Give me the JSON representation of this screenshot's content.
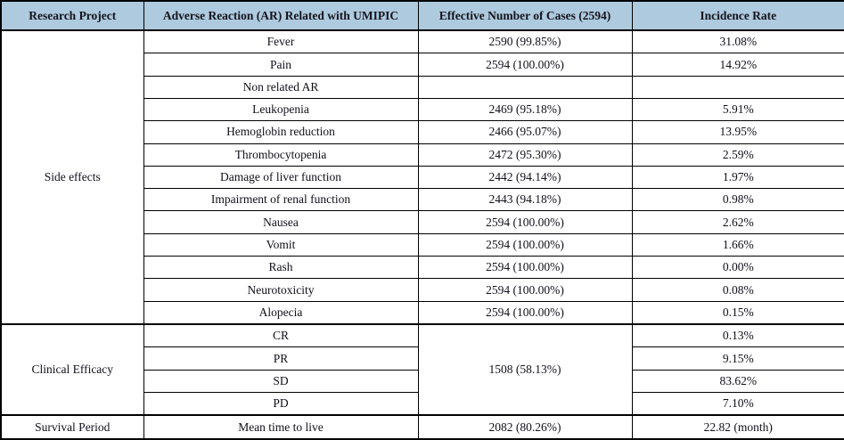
{
  "colors": {
    "header_bg": "#aecade",
    "border": "#000000",
    "text": "#10101a",
    "table_bg": "#ffffff"
  },
  "table": {
    "headers": [
      "Research Project",
      "Adverse Reaction (AR) Related with UMIPIC",
      "Effective Number of Cases (2594)",
      "Incidence Rate"
    ],
    "side_effects": {
      "label": "Side effects",
      "rows": [
        {
          "ar": "Fever",
          "cases": "2590 (99.85%)",
          "rate": "31.08%"
        },
        {
          "ar": "Pain",
          "cases": "2594 (100.00%)",
          "rate": "14.92%"
        },
        {
          "ar": "Non related AR",
          "cases": "",
          "rate": ""
        },
        {
          "ar": "Leukopenia",
          "cases": "2469 (95.18%)",
          "rate": "5.91%"
        },
        {
          "ar": "Hemoglobin reduction",
          "cases": "2466 (95.07%)",
          "rate": "13.95%"
        },
        {
          "ar": "Thrombocytopenia",
          "cases": "2472 (95.30%)",
          "rate": "2.59%"
        },
        {
          "ar": "Damage of liver function",
          "cases": "2442 (94.14%)",
          "rate": "1.97%"
        },
        {
          "ar": "Impairment of renal function",
          "cases": "2443 (94.18%)",
          "rate": "0.98%"
        },
        {
          "ar": "Nausea",
          "cases": "2594 (100.00%)",
          "rate": "2.62%"
        },
        {
          "ar": "Vomit",
          "cases": "2594 (100.00%)",
          "rate": "1.66%"
        },
        {
          "ar": "Rash",
          "cases": "2594 (100.00%)",
          "rate": "0.00%"
        },
        {
          "ar": "Neurotoxicity",
          "cases": "2594 (100.00%)",
          "rate": "0.08%"
        },
        {
          "ar": "Alopecia",
          "cases": "2594 (100.00%)",
          "rate": "0.15%"
        }
      ]
    },
    "clinical_efficacy": {
      "label": "Clinical Efficacy",
      "cases": "1508 (58.13%)",
      "rows": [
        {
          "ar": "CR",
          "rate": "0.13%"
        },
        {
          "ar": "PR",
          "rate": "9.15%"
        },
        {
          "ar": "SD",
          "rate": "83.62%"
        },
        {
          "ar": "PD",
          "rate": "7.10%"
        }
      ]
    },
    "survival_period": {
      "label": "Survival Period",
      "ar": "Mean time to live",
      "cases": "2082 (80.26%)",
      "rate": "22.82 (month)"
    }
  }
}
